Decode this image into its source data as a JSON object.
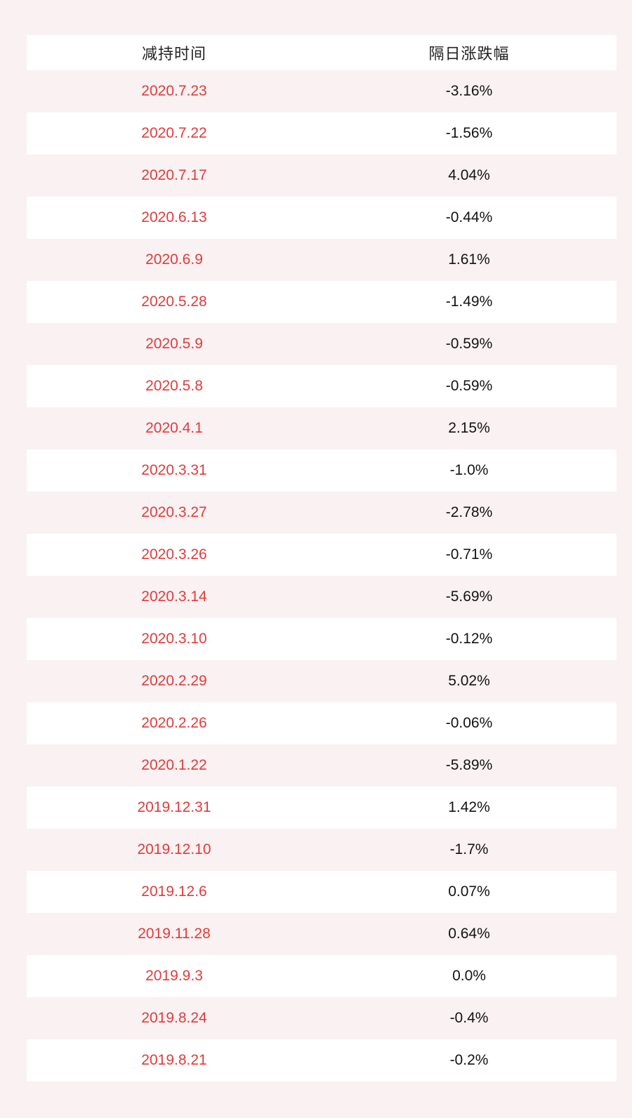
{
  "colors": {
    "page_background": "#f9f1f2",
    "row_stripe_white": "#ffffff",
    "date_red": "#e03c3c",
    "value_black": "#141414",
    "header_text": "#222222"
  },
  "chart_data": {
    "type": "table",
    "columns": [
      "减持时间",
      "隔日涨跌幅"
    ],
    "rows": [
      {
        "date": "2020.7.23",
        "change": "-3.16%"
      },
      {
        "date": "2020.7.22",
        "change": "-1.56%"
      },
      {
        "date": "2020.7.17",
        "change": "4.04%"
      },
      {
        "date": "2020.6.13",
        "change": "-0.44%"
      },
      {
        "date": "2020.6.9",
        "change": "1.61%"
      },
      {
        "date": "2020.5.28",
        "change": "-1.49%"
      },
      {
        "date": "2020.5.9",
        "change": "-0.59%"
      },
      {
        "date": "2020.5.8",
        "change": "-0.59%"
      },
      {
        "date": "2020.4.1",
        "change": "2.15%"
      },
      {
        "date": "2020.3.31",
        "change": "-1.0%"
      },
      {
        "date": "2020.3.27",
        "change": "-2.78%"
      },
      {
        "date": "2020.3.26",
        "change": "-0.71%"
      },
      {
        "date": "2020.3.14",
        "change": "-5.69%"
      },
      {
        "date": "2020.3.10",
        "change": "-0.12%"
      },
      {
        "date": "2020.2.29",
        "change": "5.02%"
      },
      {
        "date": "2020.2.26",
        "change": "-0.06%"
      },
      {
        "date": "2020.1.22",
        "change": "-5.89%"
      },
      {
        "date": "2019.12.31",
        "change": "1.42%"
      },
      {
        "date": "2019.12.10",
        "change": "-1.7%"
      },
      {
        "date": "2019.12.6",
        "change": "0.07%"
      },
      {
        "date": "2019.11.28",
        "change": "0.64%"
      },
      {
        "date": "2019.9.3",
        "change": "0.0%"
      },
      {
        "date": "2019.8.24",
        "change": "-0.4%"
      },
      {
        "date": "2019.8.21",
        "change": "-0.2%"
      }
    ]
  }
}
